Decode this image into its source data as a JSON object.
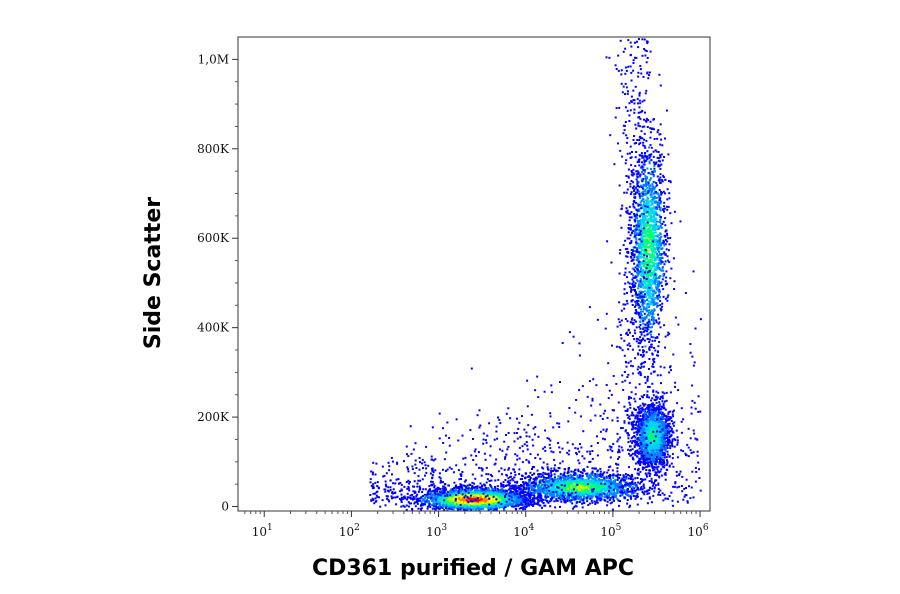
{
  "chart_data": {
    "type": "scatter",
    "subtype": "flow-cytometry-density-dot-plot",
    "title": "",
    "xlabel": "CD361 purified / GAM APC",
    "ylabel": "Side Scatter",
    "x_scale": "log",
    "y_scale": "linear",
    "xlim": [
      5,
      1300000
    ],
    "ylim": [
      -10000,
      1050000
    ],
    "x_ticks": [
      {
        "base": "10",
        "exp": "1",
        "value": 10
      },
      {
        "base": "10",
        "exp": "2",
        "value": 100
      },
      {
        "base": "10",
        "exp": "3",
        "value": 1000
      },
      {
        "base": "10",
        "exp": "4",
        "value": 10000
      },
      {
        "base": "10",
        "exp": "5",
        "value": 100000
      },
      {
        "base": "10",
        "exp": "6",
        "value": 1000000
      }
    ],
    "y_ticks": [
      {
        "label": "0",
        "value": 0
      },
      {
        "label": "200K",
        "value": 200000
      },
      {
        "label": "400K",
        "value": 400000
      },
      {
        "label": "600K",
        "value": 600000
      },
      {
        "label": "800K",
        "value": 800000
      },
      {
        "label": "1,0M",
        "value": 1000000
      }
    ],
    "density_colors": [
      "#0000ff",
      "#0080ff",
      "#00d0ff",
      "#00ff80",
      "#c0ff00",
      "#ffff00",
      "#ff8000",
      "#ff0000"
    ],
    "populations": [
      {
        "x_center": 2500,
        "y_center": 18000,
        "log_spread_x": 0.3,
        "spread_y": 12000,
        "peak_density": 1.0
      },
      {
        "x_center": 40000,
        "y_center": 45000,
        "log_spread_x": 0.35,
        "spread_y": 16000,
        "peak_density": 0.55
      },
      {
        "x_center": 250000,
        "y_center": 580000,
        "log_spread_x": 0.1,
        "spread_y": 110000,
        "peak_density": 0.5
      },
      {
        "x_center": 280000,
        "y_center": 160000,
        "log_spread_x": 0.1,
        "spread_y": 35000,
        "peak_density": 0.45
      }
    ],
    "grid": false,
    "legend": "none"
  }
}
